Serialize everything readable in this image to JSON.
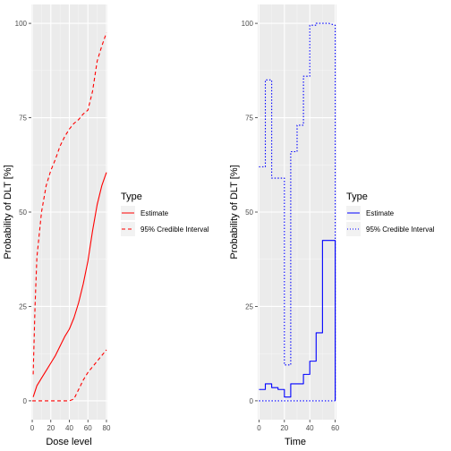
{
  "chart_data": [
    {
      "type": "line",
      "xlabel": "Dose level",
      "ylabel": "Probability of DLT [%]",
      "xlim": [
        -1,
        81
      ],
      "ylim": [
        -5,
        105
      ],
      "x_ticks": [
        0,
        20,
        40,
        60,
        80
      ],
      "y_ticks": [
        0,
        25,
        50,
        75,
        100
      ],
      "legend": {
        "title": "Type",
        "position": "right",
        "entries": [
          "Estimate",
          "95% Credible Interval"
        ]
      },
      "colors": {
        "series": "#ff0000"
      },
      "series": [
        {
          "name": "Estimate",
          "linestyle": "solid",
          "x": [
            1,
            5,
            10,
            15,
            20,
            25,
            30,
            35,
            40,
            45,
            50,
            55,
            60,
            65,
            70,
            75,
            80
          ],
          "y": [
            1,
            4,
            6,
            8,
            10,
            12,
            14.5,
            17,
            19,
            22,
            26,
            31,
            37,
            45,
            52,
            57,
            60.5
          ]
        },
        {
          "name": "95% Credible Interval (upper)",
          "linestyle": "dashed",
          "x": [
            1,
            3,
            5,
            10,
            15,
            20,
            25,
            30,
            35,
            40,
            45,
            50,
            55,
            60,
            65,
            70,
            75,
            80
          ],
          "y": [
            7,
            25,
            38,
            50,
            57,
            61,
            64,
            67.5,
            70,
            72,
            73.5,
            74.5,
            76,
            77,
            82,
            90,
            94,
            97.5
          ]
        },
        {
          "name": "95% Credible Interval (lower)",
          "linestyle": "dashed",
          "x": [
            0,
            10,
            20,
            30,
            40,
            45,
            50,
            55,
            60,
            65,
            70,
            75,
            80
          ],
          "y": [
            0,
            0,
            0,
            0,
            0,
            0.5,
            3,
            5.5,
            7.5,
            9,
            10.5,
            12,
            13.5
          ]
        }
      ]
    },
    {
      "type": "line",
      "xlabel": "Time",
      "ylabel": "Probability of DLT [%]",
      "xlim": [
        -1,
        61
      ],
      "ylim": [
        -5,
        105
      ],
      "x_ticks": [
        0,
        20,
        40,
        60
      ],
      "y_ticks": [
        0,
        25,
        50,
        75,
        100
      ],
      "legend": {
        "title": "Type",
        "position": "right",
        "entries": [
          "Estimate",
          "95% Credible Interval"
        ]
      },
      "colors": {
        "series": "#0000ff"
      },
      "series": [
        {
          "name": "Estimate",
          "linestyle": "solid",
          "step": true,
          "x": [
            0,
            5,
            5,
            10,
            10,
            15,
            15,
            20,
            20,
            25,
            25,
            30,
            30,
            35,
            35,
            40,
            40,
            45,
            45,
            50,
            50,
            55,
            55,
            60,
            60
          ],
          "y": [
            3,
            3,
            4.5,
            4.5,
            3.5,
            3.5,
            3,
            3,
            1,
            1,
            4.5,
            4.5,
            4.5,
            4.5,
            7,
            7,
            10.5,
            10.5,
            18,
            18,
            42.5,
            42.5,
            42.5,
            42.5,
            0
          ]
        },
        {
          "name": "95% Credible Interval (upper)",
          "linestyle": "dotted",
          "step": true,
          "x": [
            0,
            5,
            5,
            10,
            10,
            15,
            15,
            20,
            20,
            25,
            25,
            30,
            30,
            35,
            35,
            40,
            40,
            45,
            45,
            50,
            50,
            55,
            55,
            60,
            60
          ],
          "y": [
            62,
            62,
            85,
            85,
            59,
            59,
            59,
            59,
            9.5,
            9.5,
            66,
            66,
            73,
            73,
            86,
            86,
            99.5,
            99.5,
            100,
            100,
            100,
            100,
            100,
            99.5,
            0
          ]
        },
        {
          "name": "95% Credible Interval (lower)",
          "linestyle": "dotted",
          "x": [
            0,
            60
          ],
          "y": [
            0,
            0
          ]
        }
      ]
    }
  ]
}
